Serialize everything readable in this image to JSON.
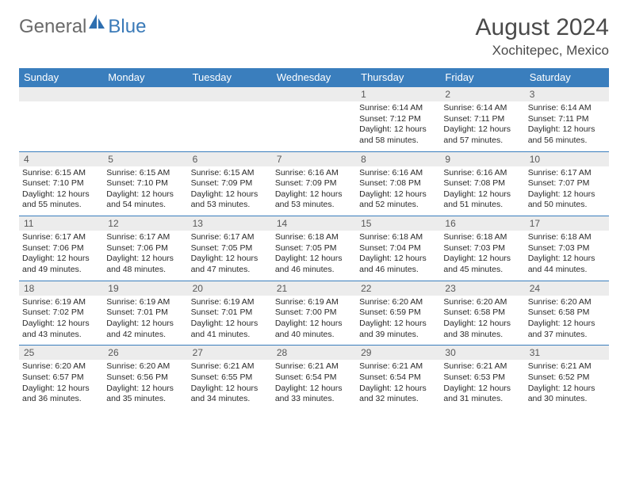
{
  "logo": {
    "textGeneral": "General",
    "textBlue": "Blue"
  },
  "title": "August 2024",
  "location": "Xochitepec, Mexico",
  "colors": {
    "headerBg": "#3a7ebd",
    "headerText": "#ffffff",
    "dayNumBg": "#ececec",
    "dayNumText": "#585858",
    "bodyText": "#2a2a2a",
    "titleText": "#4a4a4a",
    "logoGray": "#6a6a6a",
    "logoBlue": "#3a7ab8"
  },
  "fonts": {
    "title_pt": 30,
    "location_pt": 17,
    "dayheader_pt": 13,
    "daynum_pt": 12,
    "detail_pt": 10.5
  },
  "dayHeaders": [
    "Sunday",
    "Monday",
    "Tuesday",
    "Wednesday",
    "Thursday",
    "Friday",
    "Saturday"
  ],
  "weeks": [
    [
      {
        "num": "",
        "sunrise": "",
        "sunset": "",
        "daylight": ""
      },
      {
        "num": "",
        "sunrise": "",
        "sunset": "",
        "daylight": ""
      },
      {
        "num": "",
        "sunrise": "",
        "sunset": "",
        "daylight": ""
      },
      {
        "num": "",
        "sunrise": "",
        "sunset": "",
        "daylight": ""
      },
      {
        "num": "1",
        "sunrise": "Sunrise: 6:14 AM",
        "sunset": "Sunset: 7:12 PM",
        "daylight": "Daylight: 12 hours and 58 minutes."
      },
      {
        "num": "2",
        "sunrise": "Sunrise: 6:14 AM",
        "sunset": "Sunset: 7:11 PM",
        "daylight": "Daylight: 12 hours and 57 minutes."
      },
      {
        "num": "3",
        "sunrise": "Sunrise: 6:14 AM",
        "sunset": "Sunset: 7:11 PM",
        "daylight": "Daylight: 12 hours and 56 minutes."
      }
    ],
    [
      {
        "num": "4",
        "sunrise": "Sunrise: 6:15 AM",
        "sunset": "Sunset: 7:10 PM",
        "daylight": "Daylight: 12 hours and 55 minutes."
      },
      {
        "num": "5",
        "sunrise": "Sunrise: 6:15 AM",
        "sunset": "Sunset: 7:10 PM",
        "daylight": "Daylight: 12 hours and 54 minutes."
      },
      {
        "num": "6",
        "sunrise": "Sunrise: 6:15 AM",
        "sunset": "Sunset: 7:09 PM",
        "daylight": "Daylight: 12 hours and 53 minutes."
      },
      {
        "num": "7",
        "sunrise": "Sunrise: 6:16 AM",
        "sunset": "Sunset: 7:09 PM",
        "daylight": "Daylight: 12 hours and 53 minutes."
      },
      {
        "num": "8",
        "sunrise": "Sunrise: 6:16 AM",
        "sunset": "Sunset: 7:08 PM",
        "daylight": "Daylight: 12 hours and 52 minutes."
      },
      {
        "num": "9",
        "sunrise": "Sunrise: 6:16 AM",
        "sunset": "Sunset: 7:08 PM",
        "daylight": "Daylight: 12 hours and 51 minutes."
      },
      {
        "num": "10",
        "sunrise": "Sunrise: 6:17 AM",
        "sunset": "Sunset: 7:07 PM",
        "daylight": "Daylight: 12 hours and 50 minutes."
      }
    ],
    [
      {
        "num": "11",
        "sunrise": "Sunrise: 6:17 AM",
        "sunset": "Sunset: 7:06 PM",
        "daylight": "Daylight: 12 hours and 49 minutes."
      },
      {
        "num": "12",
        "sunrise": "Sunrise: 6:17 AM",
        "sunset": "Sunset: 7:06 PM",
        "daylight": "Daylight: 12 hours and 48 minutes."
      },
      {
        "num": "13",
        "sunrise": "Sunrise: 6:17 AM",
        "sunset": "Sunset: 7:05 PM",
        "daylight": "Daylight: 12 hours and 47 minutes."
      },
      {
        "num": "14",
        "sunrise": "Sunrise: 6:18 AM",
        "sunset": "Sunset: 7:05 PM",
        "daylight": "Daylight: 12 hours and 46 minutes."
      },
      {
        "num": "15",
        "sunrise": "Sunrise: 6:18 AM",
        "sunset": "Sunset: 7:04 PM",
        "daylight": "Daylight: 12 hours and 46 minutes."
      },
      {
        "num": "16",
        "sunrise": "Sunrise: 6:18 AM",
        "sunset": "Sunset: 7:03 PM",
        "daylight": "Daylight: 12 hours and 45 minutes."
      },
      {
        "num": "17",
        "sunrise": "Sunrise: 6:18 AM",
        "sunset": "Sunset: 7:03 PM",
        "daylight": "Daylight: 12 hours and 44 minutes."
      }
    ],
    [
      {
        "num": "18",
        "sunrise": "Sunrise: 6:19 AM",
        "sunset": "Sunset: 7:02 PM",
        "daylight": "Daylight: 12 hours and 43 minutes."
      },
      {
        "num": "19",
        "sunrise": "Sunrise: 6:19 AM",
        "sunset": "Sunset: 7:01 PM",
        "daylight": "Daylight: 12 hours and 42 minutes."
      },
      {
        "num": "20",
        "sunrise": "Sunrise: 6:19 AM",
        "sunset": "Sunset: 7:01 PM",
        "daylight": "Daylight: 12 hours and 41 minutes."
      },
      {
        "num": "21",
        "sunrise": "Sunrise: 6:19 AM",
        "sunset": "Sunset: 7:00 PM",
        "daylight": "Daylight: 12 hours and 40 minutes."
      },
      {
        "num": "22",
        "sunrise": "Sunrise: 6:20 AM",
        "sunset": "Sunset: 6:59 PM",
        "daylight": "Daylight: 12 hours and 39 minutes."
      },
      {
        "num": "23",
        "sunrise": "Sunrise: 6:20 AM",
        "sunset": "Sunset: 6:58 PM",
        "daylight": "Daylight: 12 hours and 38 minutes."
      },
      {
        "num": "24",
        "sunrise": "Sunrise: 6:20 AM",
        "sunset": "Sunset: 6:58 PM",
        "daylight": "Daylight: 12 hours and 37 minutes."
      }
    ],
    [
      {
        "num": "25",
        "sunrise": "Sunrise: 6:20 AM",
        "sunset": "Sunset: 6:57 PM",
        "daylight": "Daylight: 12 hours and 36 minutes."
      },
      {
        "num": "26",
        "sunrise": "Sunrise: 6:20 AM",
        "sunset": "Sunset: 6:56 PM",
        "daylight": "Daylight: 12 hours and 35 minutes."
      },
      {
        "num": "27",
        "sunrise": "Sunrise: 6:21 AM",
        "sunset": "Sunset: 6:55 PM",
        "daylight": "Daylight: 12 hours and 34 minutes."
      },
      {
        "num": "28",
        "sunrise": "Sunrise: 6:21 AM",
        "sunset": "Sunset: 6:54 PM",
        "daylight": "Daylight: 12 hours and 33 minutes."
      },
      {
        "num": "29",
        "sunrise": "Sunrise: 6:21 AM",
        "sunset": "Sunset: 6:54 PM",
        "daylight": "Daylight: 12 hours and 32 minutes."
      },
      {
        "num": "30",
        "sunrise": "Sunrise: 6:21 AM",
        "sunset": "Sunset: 6:53 PM",
        "daylight": "Daylight: 12 hours and 31 minutes."
      },
      {
        "num": "31",
        "sunrise": "Sunrise: 6:21 AM",
        "sunset": "Sunset: 6:52 PM",
        "daylight": "Daylight: 12 hours and 30 minutes."
      }
    ]
  ]
}
